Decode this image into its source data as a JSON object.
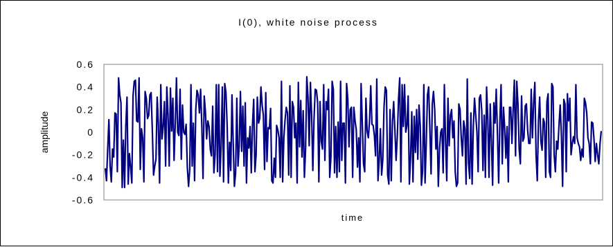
{
  "chart_data": {
    "type": "line",
    "title": "I(0), white noise process",
    "xlabel": "time",
    "ylabel": "amplitude",
    "ylim": [
      -0.6,
      0.6
    ],
    "yticks": [
      "0.6",
      "0.4",
      "0.2",
      "0",
      "-0.2",
      "-0.4",
      "-0.6"
    ],
    "ytick_values": [
      0.6,
      0.4,
      0.2,
      0,
      -0.2,
      -0.4,
      -0.6
    ],
    "grid": false,
    "legend": "none",
    "line_color": "#000080",
    "series": [
      {
        "values": [
          -0.32,
          -0.43,
          -0.15,
          0.11,
          -0.3,
          -0.44,
          -0.15,
          -0.22,
          0.17,
          0.16,
          -0.35,
          0.48,
          0.33,
          0.26,
          -0.49,
          -0.07,
          -0.49,
          0.05,
          0.31,
          -0.46,
          -0.19,
          -0.31,
          -0.45,
          0.32,
          0.45,
          0.46,
          0.1,
          0.09,
          0.48,
          -0.33,
          0.03,
          -0.05,
          -0.44,
          0.36,
          0.3,
          0.12,
          0.15,
          0.33,
          0.35,
          0.01,
          -0.38,
          -0.3,
          -0.24,
          0.31,
          0.07,
          -0.45,
          0.42,
          -0.06,
          0.05,
          0.27,
          -0.3,
          0.4,
          0.15,
          -0.3,
          0.39,
          0.01,
          0.3,
          -0.25,
          0.08,
          0.48,
          0.0,
          -0.03,
          0.38,
          -0.24,
          0.24,
          0.0,
          -0.02,
          0.07,
          -0.31,
          -0.48,
          -0.33,
          0.42,
          -0.3,
          0.08,
          -0.43,
          0.2,
          0.37,
          0.33,
          0.17,
          0.38,
          0.06,
          -0.41,
          0.32,
          0.18,
          -0.06,
          0.1,
          0.05,
          -0.15,
          -0.21,
          0.23,
          -0.36,
          -0.2,
          0.42,
          -0.35,
          0.42,
          -0.39,
          -0.13,
          0.4,
          -0.44,
          0.43,
          0.35,
          0.06,
          -0.45,
          -0.09,
          -0.34,
          0.33,
          -0.09,
          -0.48,
          -0.36,
          0.3,
          -0.3,
          -0.12,
          0.36,
          -0.17,
          0.23,
          -0.3,
          0.26,
          -0.45,
          -0.05,
          -0.14,
          0.05,
          -0.36,
          0.07,
          0.29,
          -0.35,
          -0.2,
          0.31,
          0.08,
          0.12,
          0.4,
          0.24,
          0.15,
          -0.33,
          0.35,
          -0.26,
          0.04,
          0.03,
          0.21,
          -0.43,
          -0.45,
          -0.23,
          -0.4,
          0.06,
          0.02,
          -0.05,
          -0.4,
          0.45,
          -0.44,
          -0.05,
          0.11,
          0.22,
          0.17,
          -0.38,
          0.41,
          -0.4,
          0.27,
          0.22,
          -0.05,
          0.08,
          -0.45,
          0.44,
          -0.13,
          0.28,
          -0.22,
          0.19,
          -0.4,
          -0.15,
          0.49,
          0.31,
          -0.12,
          0.44,
          0.15,
          -0.34,
          0.12,
          0.38,
          0.37,
          0.26,
          -0.44,
          0.27,
          -0.08,
          -0.15,
          0.42,
          -0.25,
          0.27,
          0.2,
          0.38,
          -0.4,
          -0.22,
          0.45,
          0.38,
          -0.36,
          0.05,
          -0.4,
          0.09,
          -0.35,
          0.45,
          -0.25,
          0.08,
          0.08,
          -0.45,
          0.43,
          0.29,
          -0.13,
          0.2,
          0.22,
          -0.4,
          0.22,
          0.1,
          0.02,
          -0.31,
          -0.05,
          -0.44,
          0.43,
          0.08,
          -0.28,
          -0.35,
          0.3,
          0.01,
          -0.05,
          0.1,
          0.41,
          0.07,
          0.06,
          -0.03,
          -0.21,
          0.47,
          -0.43,
          -0.25,
          0.03,
          -0.38,
          -0.24,
          0.22,
          0.4,
          0.37,
          -0.38,
          -0.46,
          0.2,
          -0.43,
          0.09,
          0.27,
          0.02,
          -0.25,
          -0.04,
          0.29,
          0.48,
          -0.44,
          0.42,
          0.05,
          0.42,
          0.0,
          0.06,
          0.32,
          -0.46,
          -0.22,
          0.18,
          -0.44,
          0.14,
          -0.18,
          0.2,
          -0.24,
          0.24,
          0.06,
          -0.47,
          -0.34,
          0.42,
          -0.45,
          -0.1,
          0.33,
          0.4,
          0.02,
          -0.37,
          0.25,
          0.36,
          0.2,
          -0.15,
          0.05,
          -0.48,
          -0.15,
          0.0,
          0.03,
          -0.36,
          0.42,
          -0.08,
          -0.43,
          0.3,
          -0.12,
          0.15,
          0.2,
          -0.05,
          0.1,
          -0.35,
          -0.48,
          -0.45,
          0.25,
          0.2,
          -0.05,
          -0.21,
          0.1,
          0.03,
          -0.46,
          0.47,
          -0.27,
          -0.41,
          0.17,
          -0.46,
          0.05,
          0.3,
          0.15,
          0.0,
          -0.35,
          0.3,
          0.33,
          0.19,
          -0.34,
          0.15,
          -0.4,
          0.4,
          0.12,
          -0.4,
          0.25,
          -0.08,
          -0.47,
          0.26,
          0.08,
          0.38,
          -0.02,
          -0.45,
          0.1,
          0.42,
          -0.28,
          0.22,
          0.04,
          -0.23,
          0.05,
          -0.44,
          0.22,
          0.22,
          -0.1,
          0.2,
          0.46,
          -0.21,
          0.45,
          0.25,
          -0.15,
          -0.28,
          0.32,
          -0.08,
          -0.05,
          0.23,
          0.25,
          0.02,
          -0.1,
          -0.1,
          0.38,
          -0.05,
          0.26,
          0.44,
          -0.2,
          -0.43,
          0.1,
          0.31,
          -0.08,
          -0.16,
          0.12,
          0.08,
          -0.4,
          0.27,
          0.34,
          -0.35,
          -0.4,
          0.43,
          0.4,
          -0.2,
          -0.35,
          -0.08,
          -0.15,
          0.06,
          0.24,
          -0.03,
          -0.48,
          0.29,
          0.25,
          -0.35,
          0.34,
          0.1,
          0.3,
          -0.2,
          -0.1,
          -0.04,
          -0.1,
          0.42,
          -0.05,
          -0.1,
          -0.13,
          -0.25,
          -0.15,
          -0.22,
          0.3,
          0.26,
          0.17,
          -0.05,
          -0.1,
          -0.28,
          0.09,
          0.08,
          -0.06,
          -0.26,
          -0.1,
          -0.2,
          -0.28,
          -0.1,
          0.01
        ]
      }
    ]
  }
}
